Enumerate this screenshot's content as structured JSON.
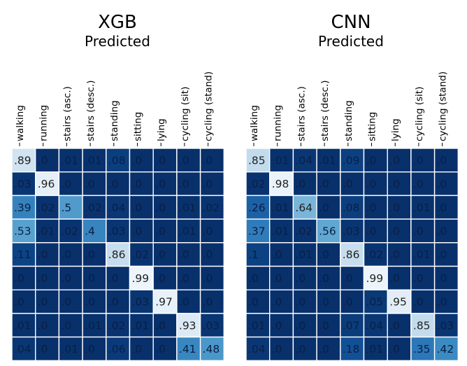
{
  "chart_data": [
    {
      "type": "heatmap",
      "title": "XGB",
      "xlabel": "Predicted",
      "categories": [
        "walking",
        "running",
        "stairs (asc.)",
        "stairs (desc.)",
        "standing",
        "sitting",
        "lying",
        "cycling (sit)",
        "cycling (stand)"
      ],
      "values": [
        [
          0.89,
          0.0,
          0.01,
          0.01,
          0.08,
          0.0,
          0.0,
          0.0,
          0.0
        ],
        [
          0.03,
          0.96,
          0.0,
          0.0,
          0.0,
          0.0,
          0.0,
          0.0,
          0.0
        ],
        [
          0.39,
          0.02,
          0.5,
          0.02,
          0.04,
          0.0,
          0.0,
          0.01,
          0.02
        ],
        [
          0.53,
          0.01,
          0.02,
          0.4,
          0.03,
          0.0,
          0.0,
          0.01,
          0.0
        ],
        [
          0.11,
          0.0,
          0.0,
          0.0,
          0.86,
          0.02,
          0.0,
          0.0,
          0.0
        ],
        [
          0.0,
          0.0,
          0.0,
          0.0,
          0.0,
          0.99,
          0.0,
          0.0,
          0.0
        ],
        [
          0.0,
          0.0,
          0.0,
          0.0,
          0.0,
          0.03,
          0.97,
          0.0,
          0.0
        ],
        [
          0.01,
          0.0,
          0.0,
          0.01,
          0.02,
          0.01,
          0.0,
          0.93,
          0.03
        ],
        [
          0.04,
          0.0,
          0.01,
          0.0,
          0.06,
          0.0,
          0.0,
          0.41,
          0.48
        ]
      ],
      "labels": [
        [
          ".89",
          ".0",
          ".01",
          ".01",
          ".08",
          ".0",
          ".0",
          ".0",
          ".0"
        ],
        [
          ".03",
          ".96",
          ".0",
          ".0",
          ".0",
          ".0",
          ".0",
          ".0",
          ".0"
        ],
        [
          ".39",
          ".02",
          ".5",
          ".02",
          ".04",
          ".0",
          ".0",
          ".01",
          ".02"
        ],
        [
          ".53",
          ".01",
          ".02",
          ".4",
          ".03",
          ".0",
          ".0",
          ".01",
          ".0"
        ],
        [
          ".11",
          ".0",
          ".0",
          ".0",
          ".86",
          ".02",
          ".0",
          ".0",
          ".0"
        ],
        [
          ".0",
          ".0",
          ".0",
          ".0",
          ".0",
          ".99",
          ".0",
          ".0",
          ".0"
        ],
        [
          ".0",
          ".0",
          ".0",
          ".0",
          ".0",
          ".03",
          ".97",
          ".0",
          ".0"
        ],
        [
          ".01",
          ".0",
          ".0",
          ".01",
          ".02",
          ".01",
          ".0",
          ".93",
          ".03"
        ],
        [
          ".04",
          ".0",
          ".01",
          ".0",
          ".06",
          ".0",
          ".0",
          ".41",
          ".48"
        ]
      ],
      "colormap": "Blues",
      "range": [
        0,
        1
      ]
    },
    {
      "type": "heatmap",
      "title": "CNN",
      "xlabel": "Predicted",
      "categories": [
        "walking",
        "running",
        "stairs (asc.)",
        "stairs (desc.)",
        "standing",
        "sitting",
        "lying",
        "cycling (sit)",
        "cycling (stand)"
      ],
      "values": [
        [
          0.85,
          0.01,
          0.04,
          0.01,
          0.09,
          0.0,
          0.0,
          0.0,
          0.0
        ],
        [
          0.02,
          0.98,
          0.0,
          0.0,
          0.0,
          0.0,
          0.0,
          0.0,
          0.0
        ],
        [
          0.26,
          0.01,
          0.64,
          0.0,
          0.08,
          0.0,
          0.0,
          0.01,
          0.0
        ],
        [
          0.37,
          0.01,
          0.02,
          0.56,
          0.03,
          0.0,
          0.0,
          0.0,
          0.0
        ],
        [
          0.1,
          0.0,
          0.01,
          0.0,
          0.86,
          0.02,
          0.0,
          0.01,
          0.0
        ],
        [
          0.0,
          0.0,
          0.0,
          0.0,
          0.0,
          0.99,
          0.0,
          0.0,
          0.0
        ],
        [
          0.0,
          0.0,
          0.0,
          0.0,
          0.0,
          0.05,
          0.95,
          0.0,
          0.0
        ],
        [
          0.01,
          0.0,
          0.0,
          0.0,
          0.07,
          0.04,
          0.0,
          0.85,
          0.03
        ],
        [
          0.04,
          0.0,
          0.0,
          0.0,
          0.18,
          0.01,
          0.0,
          0.35,
          0.42
        ]
      ],
      "labels": [
        [
          ".85",
          ".01",
          ".04",
          ".01",
          ".09",
          ".0",
          ".0",
          ".0",
          ".0"
        ],
        [
          ".02",
          ".98",
          ".0",
          ".0",
          ".0",
          ".0",
          ".0",
          ".0",
          ".0"
        ],
        [
          ".26",
          ".01",
          ".64",
          ".0",
          ".08",
          ".0",
          ".0",
          ".01",
          ".0"
        ],
        [
          ".37",
          ".01",
          ".02",
          ".56",
          ".03",
          ".0",
          ".0",
          ".0",
          ".0"
        ],
        [
          ".1",
          ".0",
          ".01",
          ".0",
          ".86",
          ".02",
          ".0",
          ".01",
          ".0"
        ],
        [
          ".0",
          ".0",
          ".0",
          ".0",
          ".0",
          ".99",
          ".0",
          ".0",
          ".0"
        ],
        [
          ".0",
          ".0",
          ".0",
          ".0",
          ".0",
          ".05",
          ".95",
          ".0",
          ".0"
        ],
        [
          ".01",
          ".0",
          ".0",
          ".0",
          ".07",
          ".04",
          ".0",
          ".85",
          ".03"
        ],
        [
          ".04",
          ".0",
          ".0",
          ".0",
          ".18",
          ".01",
          ".0",
          ".35",
          ".42"
        ]
      ],
      "colormap": "Blues",
      "range": [
        0,
        1
      ]
    }
  ]
}
